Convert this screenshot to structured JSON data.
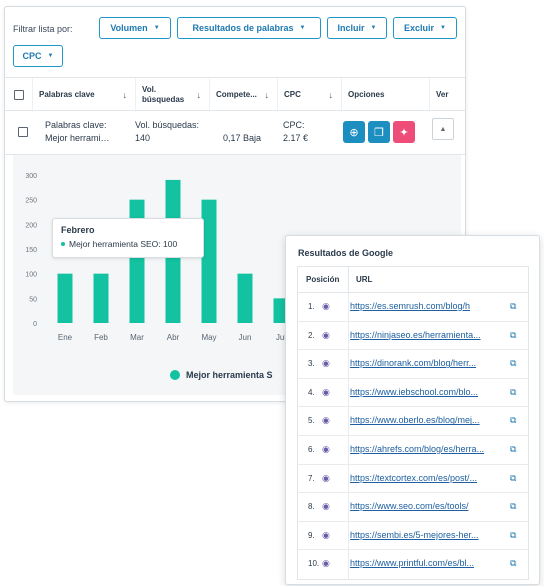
{
  "filters": {
    "label": "Filtrar lista por:",
    "buttons": [
      "Volumen",
      "Resultados de palabras",
      "Incluir",
      "Excluir",
      "CPC"
    ]
  },
  "table": {
    "headers": [
      "Palabras clave",
      "Vol. búsquedas",
      "Compete...",
      "CPC",
      "Opciones",
      "Ver"
    ],
    "row": {
      "keyword_label": "Palabras clave:",
      "keyword_value": "Mejor herramienta SEO",
      "volume_label": "Vol. búsquedas:",
      "volume_value": "140",
      "competition_value": "0,17 Baja",
      "cpc_label": "CPC:",
      "cpc_value": "2.17 €"
    }
  },
  "chart_data": {
    "type": "bar",
    "categories": [
      "Ene",
      "Feb",
      "Mar",
      "Abr",
      "May",
      "Jun",
      "Jul"
    ],
    "series": [
      {
        "name": "Mejor herramienta SEO",
        "values": [
          100,
          100,
          250,
          290,
          250,
          100,
          50
        ]
      }
    ],
    "yticks": [
      "0",
      "50",
      "100",
      "150",
      "200",
      "250",
      "300"
    ],
    "ylim": [
      0,
      300
    ],
    "color": "#12c2a0",
    "tooltip": {
      "title": "Febrero",
      "text": "Mejor herramienta SEO: 100"
    },
    "legend_text": "Mejor herramienta S",
    "legend_position": "bottom"
  },
  "google": {
    "title": "Resultados de Google",
    "col_position": "Posición",
    "col_url": "URL",
    "results": [
      {
        "pos": "1.",
        "url": "https://es.semrush.com/blog/h"
      },
      {
        "pos": "2.",
        "url": "https://ninjaseo.es/herramienta..."
      },
      {
        "pos": "3.",
        "url": "https://dinorank.com/blog/herr..."
      },
      {
        "pos": "4.",
        "url": "https://www.iebschool.com/blo..."
      },
      {
        "pos": "5.",
        "url": "https://www.oberlo.es/blog/mej..."
      },
      {
        "pos": "6.",
        "url": "https://ahrefs.com/blog/es/herra..."
      },
      {
        "pos": "7.",
        "url": "https://textcortex.com/es/post/..."
      },
      {
        "pos": "8.",
        "url": "https://www.seo.com/es/tools/"
      },
      {
        "pos": "9.",
        "url": "https://sembi.es/5-mejores-her..."
      },
      {
        "pos": "10.",
        "url": "https://www.printful.com/es/bl..."
      }
    ]
  },
  "colors": {
    "accent": "#2196c9",
    "bar": "#12c2a0",
    "btn_blue": "#1d8ec0",
    "btn_pink": "#ee4d7a"
  }
}
